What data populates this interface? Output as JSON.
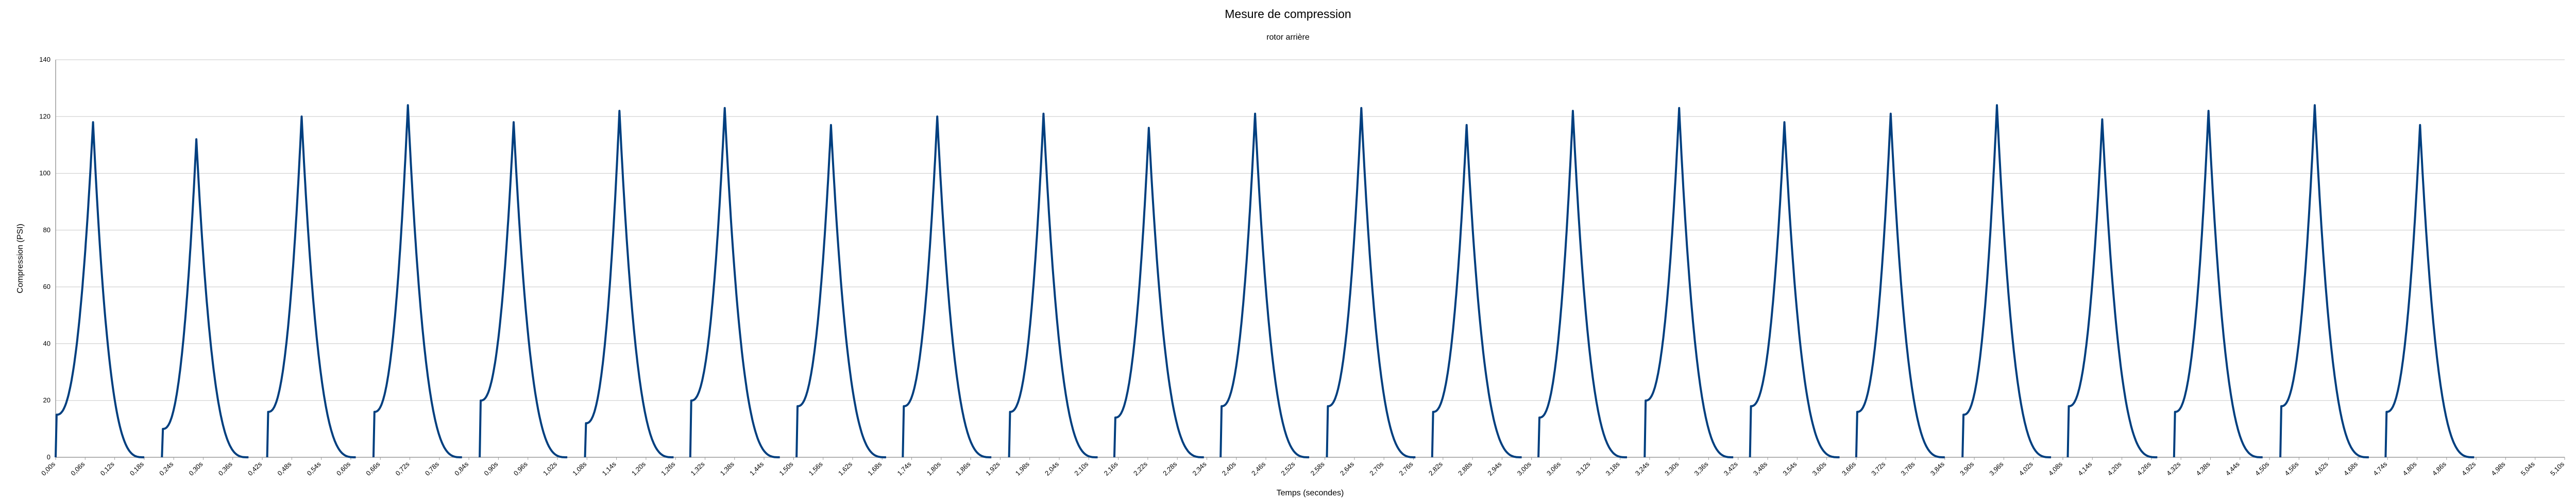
{
  "chart_data": {
    "type": "line",
    "title": "Mesure de compression",
    "subtitle": "rotor arrière",
    "xlabel": "Temps (secondes)",
    "ylabel": "Compression (PSI)",
    "ylim": [
      0,
      140
    ],
    "yticks": [
      0,
      20,
      40,
      60,
      80,
      100,
      120,
      140
    ],
    "xlim": [
      0,
      5.1
    ],
    "x_tick_step": 0.06,
    "x_tick_decimals": 2,
    "x_tick_suffix": "s",
    "grid": true,
    "line_color": "#003f7f",
    "grid_color": "#c8c8c8",
    "pulses": [
      {
        "start": 0.0,
        "peak_time": 0.076,
        "end": 0.18,
        "peak": 118,
        "base": 15
      },
      {
        "start": 0.216,
        "peak_time": 0.286,
        "end": 0.392,
        "peak": 112,
        "base": 10
      },
      {
        "start": 0.43,
        "peak_time": 0.5,
        "end": 0.61,
        "peak": 120,
        "base": 16
      },
      {
        "start": 0.646,
        "peak_time": 0.716,
        "end": 0.826,
        "peak": 124,
        "base": 16
      },
      {
        "start": 0.862,
        "peak_time": 0.931,
        "end": 1.04,
        "peak": 118,
        "base": 20
      },
      {
        "start": 1.076,
        "peak_time": 1.146,
        "end": 1.256,
        "peak": 122,
        "base": 12
      },
      {
        "start": 1.29,
        "peak_time": 1.36,
        "end": 1.472,
        "peak": 123,
        "base": 20
      },
      {
        "start": 1.506,
        "peak_time": 1.576,
        "end": 1.688,
        "peak": 117,
        "base": 18
      },
      {
        "start": 1.722,
        "peak_time": 1.792,
        "end": 1.902,
        "peak": 120,
        "base": 18
      },
      {
        "start": 1.938,
        "peak_time": 2.008,
        "end": 2.118,
        "peak": 121,
        "base": 16
      },
      {
        "start": 2.152,
        "peak_time": 2.222,
        "end": 2.334,
        "peak": 116,
        "base": 14
      },
      {
        "start": 2.368,
        "peak_time": 2.438,
        "end": 2.548,
        "peak": 121,
        "base": 18
      },
      {
        "start": 2.584,
        "peak_time": 2.654,
        "end": 2.764,
        "peak": 123,
        "base": 18
      },
      {
        "start": 2.798,
        "peak_time": 2.868,
        "end": 2.98,
        "peak": 117,
        "base": 16
      },
      {
        "start": 3.014,
        "peak_time": 3.084,
        "end": 3.194,
        "peak": 122,
        "base": 14
      },
      {
        "start": 3.23,
        "peak_time": 3.3,
        "end": 3.41,
        "peak": 123,
        "base": 20
      },
      {
        "start": 3.444,
        "peak_time": 3.514,
        "end": 3.626,
        "peak": 118,
        "base": 18
      },
      {
        "start": 3.66,
        "peak_time": 3.73,
        "end": 3.84,
        "peak": 121,
        "base": 16
      },
      {
        "start": 3.876,
        "peak_time": 3.946,
        "end": 4.056,
        "peak": 124,
        "base": 15
      },
      {
        "start": 4.09,
        "peak_time": 4.16,
        "end": 4.272,
        "peak": 119,
        "base": 18
      },
      {
        "start": 4.306,
        "peak_time": 4.376,
        "end": 4.486,
        "peak": 122,
        "base": 16
      },
      {
        "start": 4.522,
        "peak_time": 4.592,
        "end": 4.702,
        "peak": 124,
        "base": 18
      },
      {
        "start": 4.736,
        "peak_time": 4.806,
        "end": 4.916,
        "peak": 117,
        "base": 16
      }
    ]
  }
}
